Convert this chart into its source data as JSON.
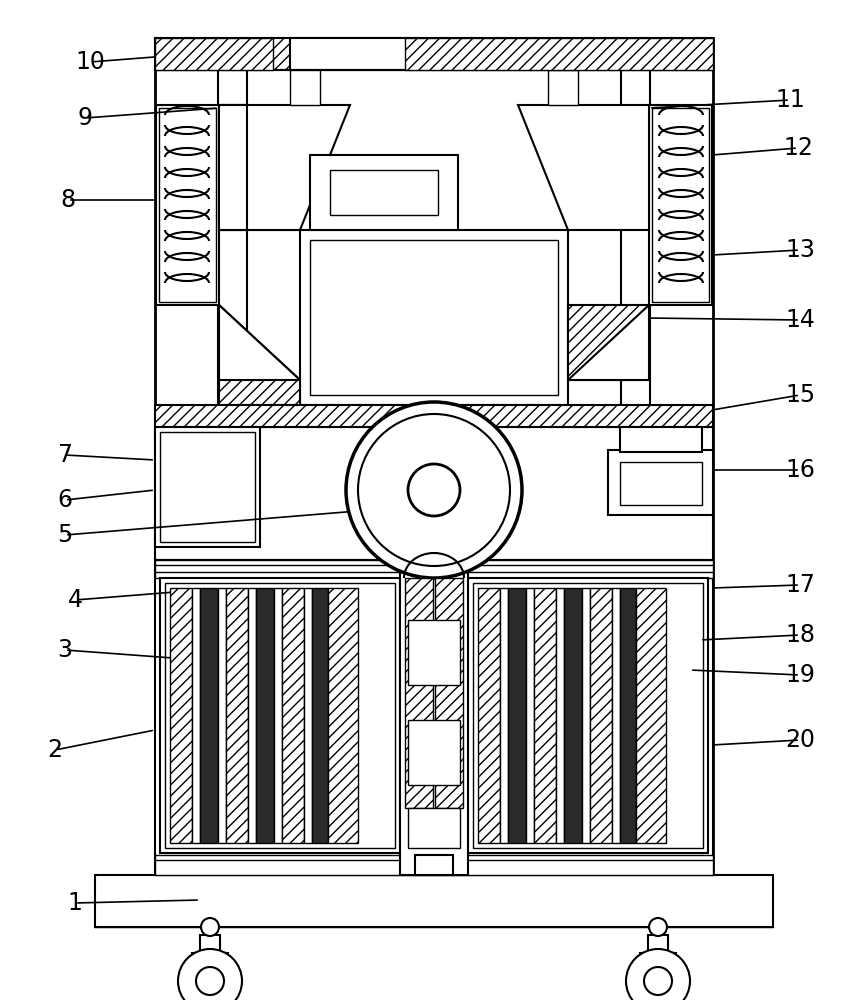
{
  "bg_color": "#ffffff",
  "line_color": "#000000",
  "label_color": "#000000",
  "label_fontsize": 17
}
